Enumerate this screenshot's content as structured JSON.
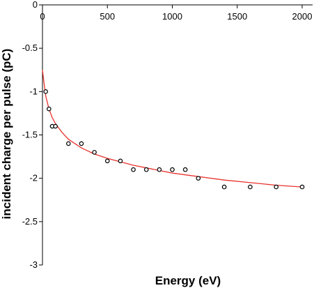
{
  "chart_data": {
    "type": "scatter",
    "title": "",
    "xlabel": "Energy (eV)",
    "ylabel": "incident charge per pulse (pC)",
    "xlim": [
      0,
      2000
    ],
    "ylim": [
      -3,
      0
    ],
    "x_ticks": [
      0,
      500,
      1000,
      1500,
      2000
    ],
    "x_tick_labels": [
      "0",
      "500",
      "1000",
      "1500",
      "2000"
    ],
    "y_ticks": [
      0,
      -0.5,
      -1,
      -1.5,
      -2,
      -2.5,
      -3
    ],
    "y_tick_labels": [
      "0",
      "-0.5",
      "-1",
      "-1.5",
      "-2",
      "-2.5",
      "-3"
    ],
    "x_axis_position": "top",
    "grid": false,
    "legend": "none",
    "series": [
      {
        "type": "scatter",
        "marker": "open-circle",
        "color": "#000000",
        "x": [
          25,
          50,
          75,
          100,
          200,
          300,
          400,
          500,
          600,
          700,
          800,
          900,
          1000,
          1100,
          1200,
          1400,
          1600,
          1800,
          2000
        ],
        "y": [
          -1.0,
          -1.2,
          -1.4,
          -1.4,
          -1.6,
          -1.6,
          -1.7,
          -1.8,
          -1.8,
          -1.9,
          -1.9,
          -1.9,
          -1.9,
          -1.9,
          -2.0,
          -2.1,
          -2.1,
          -2.1,
          -2.1
        ]
      },
      {
        "type": "line",
        "color": "#e8322d",
        "x": [
          0,
          10,
          25,
          50,
          75,
          100,
          150,
          200,
          300,
          400,
          500,
          600,
          700,
          800,
          900,
          1000,
          1200,
          1400,
          1600,
          1800,
          2000
        ],
        "y": [
          -0.75,
          -0.88,
          -1.05,
          -1.2,
          -1.3,
          -1.37,
          -1.47,
          -1.55,
          -1.65,
          -1.72,
          -1.77,
          -1.81,
          -1.85,
          -1.88,
          -1.91,
          -1.94,
          -1.98,
          -2.02,
          -2.05,
          -2.08,
          -2.1
        ]
      }
    ]
  }
}
